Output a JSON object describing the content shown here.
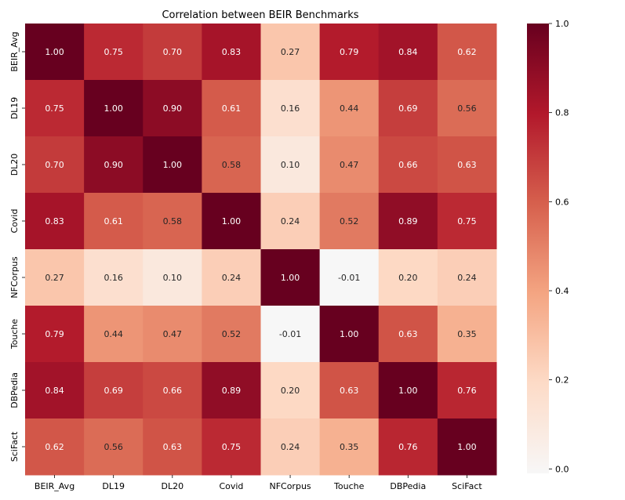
{
  "chart_data": {
    "type": "heatmap",
    "title": "Correlation between BEIR Benchmarks",
    "xlabel": "",
    "ylabel": "",
    "categories": [
      "BEIR_Avg",
      "DL19",
      "DL20",
      "Covid",
      "NFCorpus",
      "Touche",
      "DBPedia",
      "SciFact"
    ],
    "values": [
      [
        1.0,
        0.75,
        0.7,
        0.83,
        0.27,
        0.79,
        0.84,
        0.62
      ],
      [
        0.75,
        1.0,
        0.9,
        0.61,
        0.16,
        0.44,
        0.69,
        0.56
      ],
      [
        0.7,
        0.9,
        1.0,
        0.58,
        0.1,
        0.47,
        0.66,
        0.63
      ],
      [
        0.83,
        0.61,
        0.58,
        1.0,
        0.24,
        0.52,
        0.89,
        0.75
      ],
      [
        0.27,
        0.16,
        0.1,
        0.24,
        1.0,
        -0.01,
        0.2,
        0.24
      ],
      [
        0.79,
        0.44,
        0.47,
        0.52,
        -0.01,
        1.0,
        0.63,
        0.35
      ],
      [
        0.84,
        0.69,
        0.66,
        0.89,
        0.2,
        0.63,
        1.0,
        0.76
      ],
      [
        0.62,
        0.56,
        0.63,
        0.75,
        0.24,
        0.35,
        0.76,
        1.0
      ]
    ],
    "value_range": [
      -0.01,
      1.0
    ],
    "colormap": "RdBu_r",
    "colorbar": {
      "ticks": [
        0.0,
        0.2,
        0.4,
        0.6,
        0.8,
        1.0
      ],
      "tick_labels": [
        "0.0",
        "0.2",
        "0.4",
        "0.6",
        "0.8",
        "1.0"
      ]
    },
    "annotations_format": "0.00",
    "grid": false,
    "legend": "colorbar-right"
  }
}
